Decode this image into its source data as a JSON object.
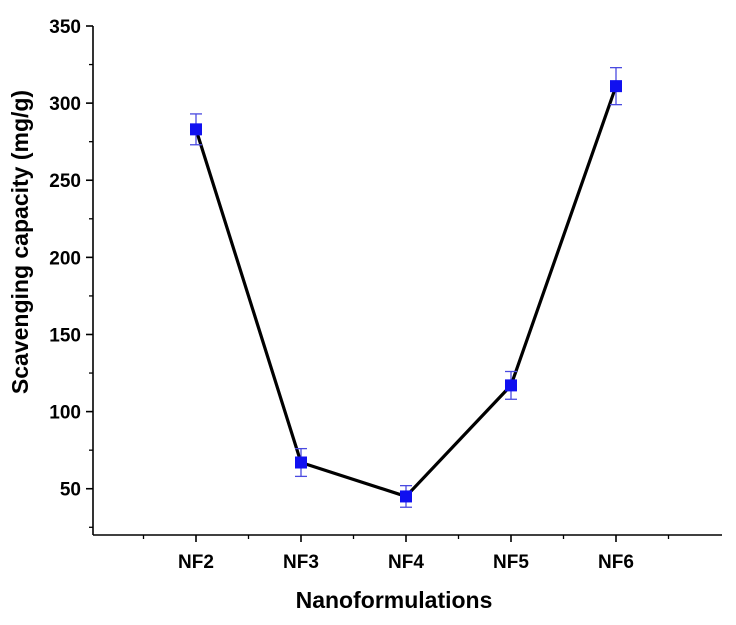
{
  "chart_data": {
    "type": "line",
    "title": "",
    "xlabel": "Nanoformulations",
    "ylabel": "Scavenging capacity (mg/g)",
    "categories": [
      "NF2",
      "NF3",
      "NF4",
      "NF5",
      "NF6"
    ],
    "series": [
      {
        "values": [
          283,
          67,
          45,
          117,
          311
        ],
        "error": [
          10,
          9,
          7,
          9,
          12
        ]
      }
    ],
    "ylim": [
      20,
      350
    ],
    "yticks": [
      50,
      100,
      150,
      200,
      250,
      300,
      350
    ],
    "ytick_labels": [
      "50",
      "100",
      "150",
      "200",
      "250",
      "300",
      "350"
    ],
    "grid": false,
    "legend": "none",
    "colors": {
      "marker": "#1010f0",
      "error_bar": "#4a4ae0",
      "line": "#000000",
      "axis": "#000000"
    }
  }
}
